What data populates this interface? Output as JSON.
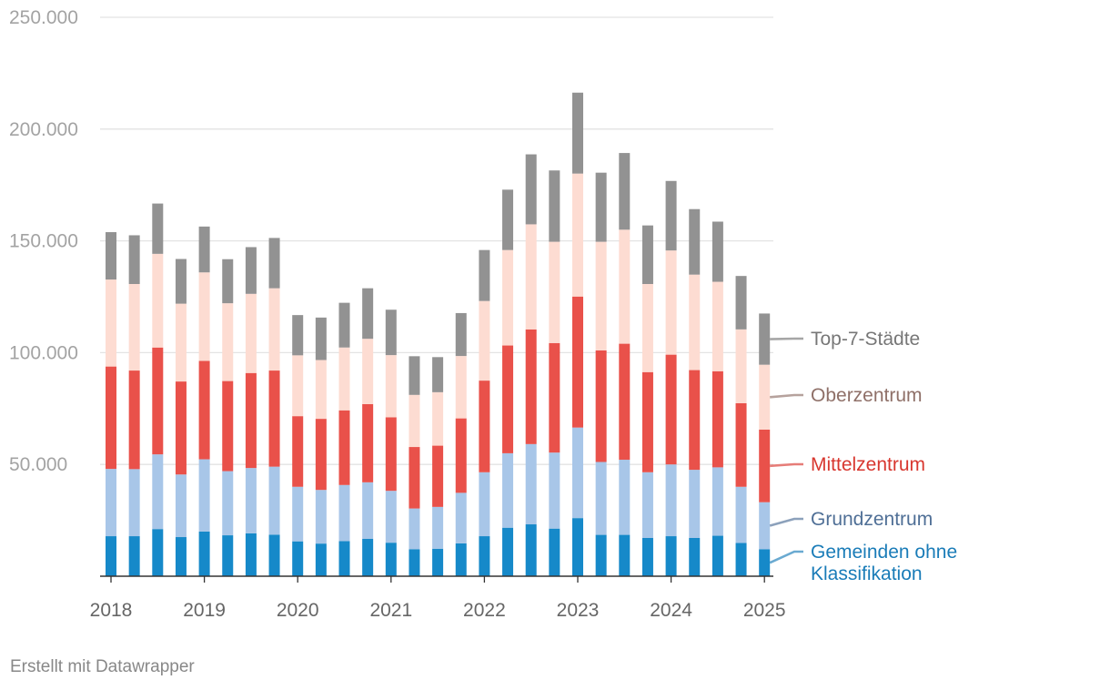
{
  "chart_data": {
    "type": "bar",
    "stacked": true,
    "x_axis_labels": [
      "2018",
      "2019",
      "2020",
      "2021",
      "2022",
      "2023",
      "2024",
      "2025"
    ],
    "y_ticks": [
      {
        "value": 0,
        "label": ""
      },
      {
        "value": 50000,
        "label": "50.000"
      },
      {
        "value": 100000,
        "label": "100.000"
      },
      {
        "value": 150000,
        "label": "150.000"
      },
      {
        "value": 200000,
        "label": "200.000"
      },
      {
        "value": 250000,
        "label": "250.000"
      }
    ],
    "ylim": [
      0,
      250000
    ],
    "grid": true,
    "legend_placement": "right, labels at series ends",
    "categories": [
      "2018 Q1",
      "2018 Q2",
      "2018 Q3",
      "2018 Q4",
      "2019 Q1",
      "2019 Q2",
      "2019 Q3",
      "2019 Q4",
      "2020 Q1",
      "2020 Q2",
      "2020 Q3",
      "2020 Q4",
      "2021 Q1",
      "2021 Q2",
      "2021 Q3",
      "2021 Q4",
      "2022 Q1",
      "2022 Q2",
      "2022 Q3",
      "2022 Q4",
      "2023 Q1",
      "2023 Q2",
      "2023 Q3",
      "2023 Q4",
      "2024 Q1",
      "2024 Q2",
      "2024 Q3",
      "2024 Q4",
      "2025 Q1"
    ],
    "series": [
      {
        "name": "Gemeinden ohne Klassifikation",
        "label_lines": [
          "Gemeinden ohne",
          "Klassifikation"
        ],
        "color": "#1689c9",
        "label_color": "#1a7cb8",
        "values": [
          17900,
          17900,
          21100,
          17500,
          20000,
          18300,
          19200,
          18600,
          15600,
          14600,
          15700,
          16700,
          15000,
          12100,
          12300,
          14700,
          17900,
          21700,
          23200,
          21300,
          26000,
          18500,
          18500,
          17100,
          17900,
          17100,
          18100,
          14900,
          12100
        ]
      },
      {
        "name": "Grundzentrum",
        "label_lines": [
          "Grundzentrum"
        ],
        "color": "#a8c6e8",
        "label_color": "#4f6f96",
        "values": [
          30100,
          30000,
          33400,
          28000,
          32300,
          28700,
          29200,
          30400,
          24400,
          24000,
          25100,
          25300,
          23200,
          18200,
          18700,
          22600,
          28600,
          33300,
          35900,
          34000,
          40500,
          32600,
          33600,
          29400,
          32100,
          30500,
          30600,
          25100,
          21000
        ]
      },
      {
        "name": "Mittelzentrum",
        "label_lines": [
          "Mittelzentrum"
        ],
        "color": "#e9514a",
        "label_color": "#d8372f",
        "values": [
          45800,
          44100,
          47800,
          41600,
          44000,
          40300,
          42500,
          43000,
          31600,
          31800,
          33400,
          35000,
          32900,
          27500,
          27400,
          33300,
          41000,
          48200,
          51300,
          49000,
          58600,
          49900,
          51900,
          44800,
          49100,
          44600,
          43000,
          37400,
          32500
        ]
      },
      {
        "name": "Oberzentrum",
        "label_lines": [
          "Oberzentrum"
        ],
        "color": "#fddcd2",
        "label_color": "#8f7068",
        "values": [
          38900,
          38700,
          41900,
          34800,
          39600,
          34800,
          35400,
          36800,
          27200,
          26300,
          28100,
          29200,
          27800,
          23300,
          23900,
          27900,
          35600,
          42700,
          47000,
          45300,
          55000,
          48600,
          51000,
          39400,
          46600,
          42700,
          40000,
          33000,
          29000
        ]
      },
      {
        "name": "Top-7-Städte",
        "label_lines": [
          "Top-7-Städte"
        ],
        "color": "#929292",
        "label_color": "#777777",
        "values": [
          21200,
          21800,
          22500,
          20000,
          20500,
          19700,
          20900,
          22500,
          18000,
          19000,
          20000,
          22600,
          20300,
          17300,
          15700,
          19200,
          22800,
          27000,
          31300,
          31900,
          36200,
          30900,
          34300,
          26200,
          31100,
          29300,
          26900,
          23900,
          22900
        ]
      }
    ]
  },
  "footer": {
    "credit": "Erstellt mit Datawrapper"
  }
}
